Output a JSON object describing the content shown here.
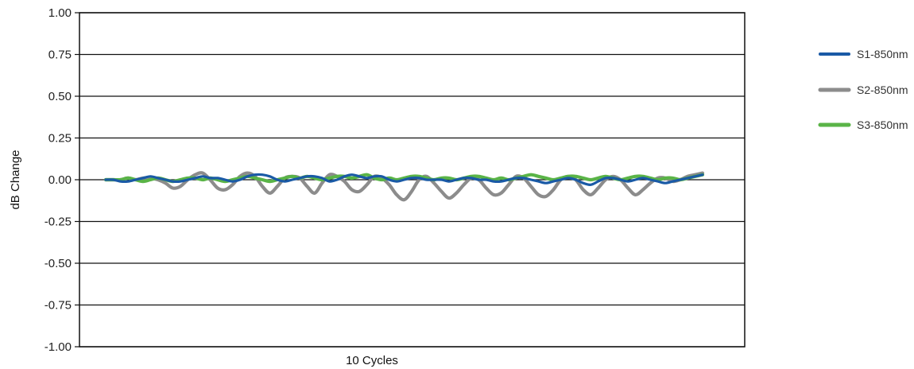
{
  "chart_data": {
    "type": "line",
    "xlabel": "10 Cycles",
    "ylabel": "dB Change",
    "ylim": [
      -1.0,
      1.0
    ],
    "yticks": [
      "1.00",
      "0.75",
      "0.50",
      "0.25",
      "0.00",
      "-0.25",
      "-0.50",
      "-0.75",
      "-1.00"
    ],
    "ytick_values": [
      1.0,
      0.75,
      0.5,
      0.25,
      0.0,
      -0.25,
      -0.5,
      -0.75,
      -1.0
    ],
    "grid": "horizontal",
    "legend_position": "right",
    "x": [
      0,
      1,
      2,
      3,
      4,
      5,
      6,
      7,
      8,
      9,
      10,
      11,
      12,
      13,
      14,
      15,
      16,
      17,
      18,
      19,
      20,
      21,
      22,
      23,
      24,
      25,
      26,
      27,
      28,
      29,
      30,
      31,
      32,
      33,
      34,
      35,
      36,
      37,
      38,
      39,
      40,
      41,
      42,
      43,
      44,
      45,
      46,
      47,
      48,
      49,
      50,
      51,
      52,
      53,
      54,
      55,
      56,
      57,
      58,
      59,
      60,
      61,
      62,
      63,
      64,
      65,
      66,
      67,
      68,
      69,
      70,
      71,
      72,
      73,
      74,
      75,
      76,
      77,
      78,
      79,
      80
    ],
    "series": [
      {
        "name": "S1-850nm",
        "color": "#1a5aa6",
        "values": [
          0.0,
          0.0,
          -0.01,
          -0.01,
          0.0,
          0.01,
          0.02,
          0.01,
          0.0,
          -0.01,
          -0.01,
          0.0,
          0.01,
          0.02,
          0.01,
          0.01,
          0.0,
          -0.01,
          0.0,
          0.02,
          0.03,
          0.03,
          0.02,
          0.0,
          -0.01,
          0.0,
          0.01,
          0.02,
          0.02,
          0.01,
          -0.01,
          0.0,
          0.02,
          0.03,
          0.02,
          0.01,
          0.02,
          0.02,
          0.0,
          -0.01,
          0.0,
          0.01,
          0.01,
          0.0,
          0.0,
          0.0,
          -0.01,
          0.0,
          0.01,
          0.01,
          0.0,
          0.0,
          -0.01,
          -0.01,
          0.0,
          0.01,
          0.01,
          0.0,
          -0.01,
          -0.02,
          -0.01,
          0.0,
          0.01,
          0.0,
          -0.02,
          -0.03,
          -0.01,
          0.01,
          0.01,
          0.0,
          -0.01,
          0.0,
          0.01,
          0.0,
          -0.01,
          -0.02,
          -0.01,
          0.0,
          0.01,
          0.02,
          0.03
        ]
      },
      {
        "name": "S2-850nm",
        "color": "#8c8c8c",
        "values": [
          0.0,
          0.0,
          0.0,
          0.01,
          0.0,
          0.01,
          0.01,
          0.0,
          -0.02,
          -0.05,
          -0.04,
          0.0,
          0.03,
          0.04,
          0.0,
          -0.05,
          -0.06,
          -0.03,
          0.02,
          0.04,
          0.02,
          -0.04,
          -0.08,
          -0.04,
          0.01,
          0.02,
          0.01,
          -0.04,
          -0.08,
          -0.02,
          0.03,
          0.02,
          -0.01,
          -0.06,
          -0.07,
          -0.03,
          0.02,
          0.01,
          -0.03,
          -0.09,
          -0.12,
          -0.07,
          0.0,
          0.02,
          -0.02,
          -0.07,
          -0.11,
          -0.08,
          -0.03,
          0.01,
          0.0,
          -0.05,
          -0.09,
          -0.08,
          -0.03,
          0.02,
          0.01,
          -0.04,
          -0.09,
          -0.1,
          -0.06,
          0.0,
          0.02,
          0.0,
          -0.06,
          -0.09,
          -0.05,
          0.0,
          0.02,
          0.0,
          -0.05,
          -0.09,
          -0.06,
          -0.02,
          0.01,
          0.01,
          -0.01,
          0.0,
          0.02,
          0.03,
          0.04
        ]
      },
      {
        "name": "S3-850nm",
        "color": "#5ab447",
        "values": [
          0.0,
          0.0,
          0.0,
          0.01,
          0.0,
          -0.01,
          0.0,
          0.01,
          0.0,
          -0.01,
          0.0,
          0.01,
          0.01,
          0.0,
          0.01,
          0.0,
          -0.01,
          0.0,
          0.01,
          0.02,
          0.01,
          0.0,
          -0.01,
          0.0,
          0.01,
          0.02,
          0.01,
          0.02,
          0.01,
          0.0,
          0.01,
          0.02,
          0.02,
          0.01,
          0.02,
          0.03,
          0.01,
          0.0,
          0.01,
          0.0,
          0.01,
          0.02,
          0.02,
          0.01,
          0.0,
          0.01,
          0.01,
          0.0,
          0.01,
          0.02,
          0.02,
          0.01,
          0.0,
          0.01,
          0.0,
          0.01,
          0.02,
          0.03,
          0.02,
          0.01,
          0.0,
          0.01,
          0.02,
          0.02,
          0.01,
          0.0,
          0.01,
          0.02,
          0.01,
          0.0,
          0.01,
          0.02,
          0.02,
          0.01,
          0.0,
          0.01,
          0.01,
          0.0,
          0.01,
          0.02,
          0.03
        ]
      }
    ]
  }
}
